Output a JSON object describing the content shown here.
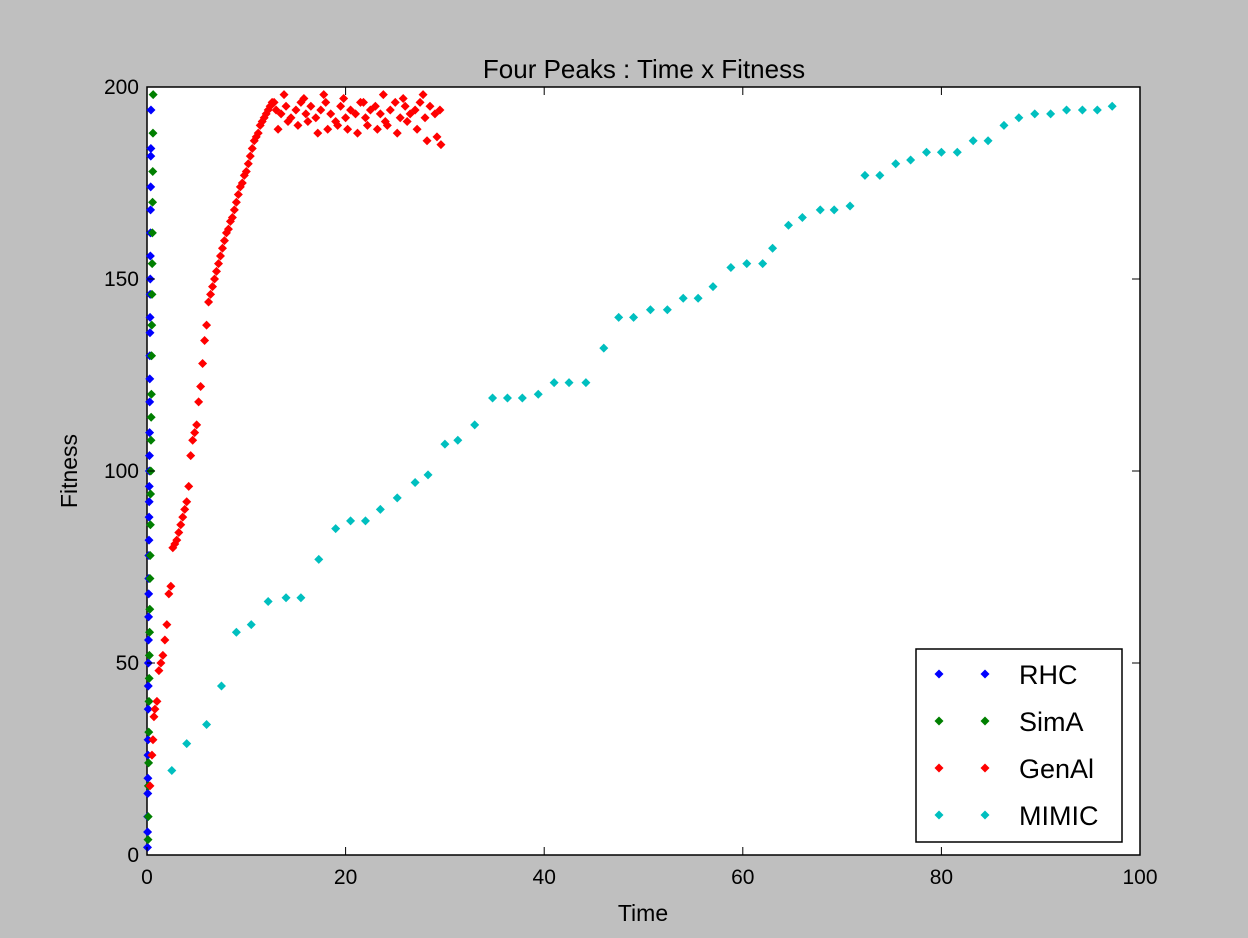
{
  "chart_data": {
    "type": "scatter",
    "title": "Four Peaks : Time x Fitness",
    "xlabel": "Time",
    "ylabel": "Fitness",
    "xlim": [
      0,
      100
    ],
    "ylim": [
      0,
      200
    ],
    "xticks": [
      "0",
      "20",
      "40",
      "60",
      "80",
      "100"
    ],
    "yticks": [
      "0",
      "50",
      "100",
      "150",
      "200"
    ],
    "grid": false,
    "legend_position": "bottom-right",
    "series": [
      {
        "name": "RHC",
        "color": "#0000ff",
        "x": [
          0.05,
          0.06,
          0.07,
          0.08,
          0.09,
          0.1,
          0.11,
          0.12,
          0.13,
          0.14,
          0.15,
          0.16,
          0.17,
          0.18,
          0.19,
          0.2,
          0.21,
          0.22,
          0.23,
          0.24,
          0.25,
          0.26,
          0.27,
          0.28,
          0.29,
          0.3,
          0.31,
          0.32,
          0.33,
          0.34,
          0.35,
          0.36,
          0.37,
          0.38,
          0.39,
          0.4
        ],
        "y": [
          2,
          6,
          10,
          16,
          20,
          26,
          30,
          38,
          44,
          50,
          56,
          62,
          68,
          72,
          78,
          82,
          88,
          92,
          96,
          100,
          104,
          110,
          118,
          124,
          130,
          136,
          140,
          146,
          150,
          156,
          162,
          168,
          174,
          182,
          184,
          194
        ]
      },
      {
        "name": "SimA",
        "color": "#007f00",
        "x": [
          0.1,
          0.12,
          0.14,
          0.16,
          0.18,
          0.2,
          0.22,
          0.24,
          0.26,
          0.28,
          0.3,
          0.32,
          0.34,
          0.36,
          0.38,
          0.4,
          0.42,
          0.44,
          0.46,
          0.48,
          0.5,
          0.52,
          0.54,
          0.56,
          0.58,
          0.6,
          0.62
        ],
        "y": [
          4,
          10,
          18,
          24,
          32,
          40,
          46,
          52,
          58,
          64,
          72,
          78,
          86,
          94,
          100,
          108,
          114,
          120,
          130,
          138,
          146,
          154,
          162,
          170,
          178,
          188,
          198
        ]
      },
      {
        "name": "GenAl",
        "color": "#ff0000",
        "x": [
          0.3,
          0.5,
          0.6,
          0.7,
          0.8,
          1.0,
          1.2,
          1.4,
          1.6,
          1.8,
          2.0,
          2.2,
          2.4,
          2.6,
          2.8,
          3.0,
          3.2,
          3.4,
          3.6,
          3.8,
          4.0,
          4.2,
          4.4,
          4.6,
          4.8,
          5.0,
          5.2,
          5.4,
          5.6,
          5.8,
          6.0,
          6.2,
          6.4,
          6.6,
          6.8,
          7.0,
          7.2,
          7.4,
          7.6,
          7.8,
          8.0,
          8.2,
          8.4,
          8.6,
          8.8,
          9.0,
          9.2,
          9.4,
          9.6,
          9.8,
          10.0,
          10.2,
          10.4,
          10.6,
          10.8,
          11.0,
          11.2,
          11.4,
          11.6,
          11.8,
          12.0,
          12.2,
          12.4,
          12.6,
          12.8,
          13.0,
          13.5,
          14.0,
          14.5,
          15.0,
          15.5,
          16.0,
          16.5,
          17.0,
          17.5,
          18.0,
          18.5,
          19.0,
          19.5,
          20.0,
          20.5,
          21.0,
          21.5,
          22.0,
          22.5,
          23.0,
          23.5,
          24.0,
          24.5,
          25.0,
          25.5,
          26.0,
          26.5,
          27.0,
          27.5,
          28.0,
          28.5,
          29.0,
          29.5,
          13.2,
          14.2,
          15.2,
          16.2,
          17.2,
          18.2,
          19.2,
          20.2,
          21.2,
          22.2,
          23.2,
          24.2,
          25.2,
          26.2,
          27.2,
          28.2,
          29.2,
          13.8,
          15.8,
          17.8,
          19.8,
          21.8,
          23.8,
          25.8,
          27.8,
          29.6
        ],
        "y": [
          18,
          26,
          30,
          36,
          38,
          40,
          48,
          50,
          52,
          56,
          60,
          68,
          70,
          80,
          81,
          82,
          84,
          86,
          88,
          90,
          92,
          96,
          104,
          108,
          110,
          112,
          118,
          122,
          128,
          134,
          138,
          144,
          146,
          148,
          150,
          152,
          154,
          156,
          158,
          160,
          162,
          163,
          165,
          166,
          168,
          170,
          172,
          174,
          175,
          177,
          178,
          180,
          182,
          184,
          186,
          187,
          188,
          190,
          191,
          192,
          193,
          194,
          195,
          196,
          196,
          194,
          193,
          195,
          192,
          194,
          196,
          193,
          195,
          192,
          194,
          196,
          193,
          191,
          195,
          192,
          194,
          193,
          196,
          192,
          194,
          195,
          193,
          191,
          194,
          196,
          192,
          195,
          193,
          194,
          196,
          192,
          195,
          193,
          194,
          189,
          191,
          190,
          191,
          188,
          189,
          190,
          189,
          188,
          190,
          189,
          190,
          188,
          191,
          189,
          186,
          187,
          198,
          197,
          198,
          197,
          196,
          198,
          197,
          198,
          185
        ]
      },
      {
        "name": "MIMIC",
        "color": "#00bfbf",
        "x": [
          2.5,
          4,
          6,
          7.5,
          9,
          10.5,
          12.2,
          14,
          15.5,
          17.3,
          19,
          20.5,
          22,
          23.5,
          25.2,
          27,
          28.3,
          30,
          31.3,
          33,
          34.8,
          36.3,
          37.8,
          39.4,
          41,
          42.5,
          44.2,
          46,
          47.5,
          49,
          50.7,
          52.4,
          54,
          55.5,
          57,
          58.8,
          60.4,
          62,
          63,
          64.6,
          66,
          67.8,
          69.2,
          70.8,
          72.3,
          73.8,
          75.4,
          76.9,
          78.5,
          80,
          81.6,
          83.2,
          84.7,
          86.3,
          87.8,
          89.4,
          91,
          92.6,
          94.2,
          95.7,
          97.2
        ],
        "y": [
          22,
          29,
          34,
          44,
          58,
          60,
          66,
          67,
          67,
          77,
          85,
          87,
          87,
          90,
          93,
          97,
          99,
          107,
          108,
          112,
          119,
          119,
          119,
          120,
          123,
          123,
          123,
          132,
          140,
          140,
          142,
          142,
          145,
          145,
          148,
          153,
          154,
          154,
          158,
          164,
          166,
          168,
          168,
          169,
          177,
          177,
          180,
          181,
          183,
          183,
          183,
          186,
          186,
          190,
          192,
          193,
          193,
          194,
          194,
          194,
          195
        ]
      }
    ]
  }
}
